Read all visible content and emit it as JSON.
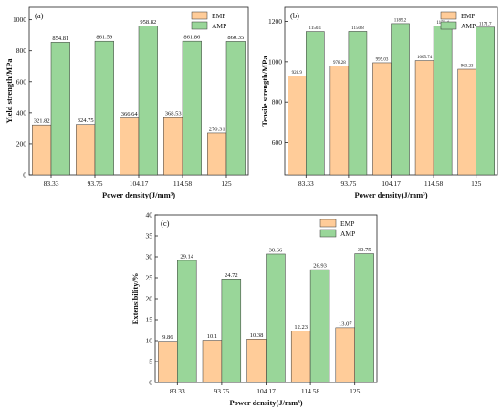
{
  "x_axis_title": "Power density(J/mm³)",
  "legend": [
    "EMP",
    "AMP"
  ],
  "colors": {
    "EMP": "#ffcc99",
    "AMP": "#99d699",
    "stroke": "#333333"
  },
  "chart_data": [
    {
      "type": "bar",
      "panel": "(a)",
      "categories": [
        "83.33",
        "93.75",
        "104.17",
        "114.58",
        "125"
      ],
      "series": [
        {
          "name": "EMP",
          "values": [
            321.82,
            324.75,
            366.64,
            368.53,
            270.31
          ]
        },
        {
          "name": "AMP",
          "values": [
            854.81,
            861.59,
            958.82,
            861.86,
            860.35
          ]
        }
      ],
      "data_labels": {
        "EMP": [
          "321.82",
          "324.75",
          "366.64",
          "368.53",
          "270.31"
        ],
        "AMP": [
          "854.81",
          "861.59",
          "958.82",
          "861.86",
          "860.35"
        ]
      },
      "xlabel": "Power density(J/mm³)",
      "ylabel": "Yield strength/MPa",
      "ylim": [
        0,
        1080
      ],
      "yticks": [
        0,
        200,
        400,
        600,
        800,
        1000
      ],
      "legend_position": "top-right"
    },
    {
      "type": "bar",
      "panel": "(b)",
      "categories": [
        "83.33",
        "93.75",
        "104.17",
        "114.58",
        "125"
      ],
      "series": [
        {
          "name": "EMP",
          "values": [
            928.9,
            978.28,
            995.03,
            1005.74,
            963.23
          ]
        },
        {
          "name": "AMP",
          "values": [
            1150.1,
            1150.8,
            1189.2,
            1176.4,
            1171.7
          ]
        }
      ],
      "data_labels": {
        "EMP": [
          "928.9",
          "978.28",
          "995.03",
          "1005.74",
          "963.23"
        ],
        "AMP": [
          "1150.1",
          "1150.8",
          "1189.2",
          "1176.4",
          "1171.7"
        ]
      },
      "xlabel": "Power density(J/mm³)",
      "ylabel": "Tensile strength/MPa",
      "ylim": [
        440,
        1270
      ],
      "yticks": [
        600,
        800,
        1000,
        1200
      ],
      "legend_position": "top-right"
    },
    {
      "type": "bar",
      "panel": "(c)",
      "categories": [
        "83.33",
        "93.75",
        "104.17",
        "114.58",
        "125"
      ],
      "series": [
        {
          "name": "EMP",
          "values": [
            9.86,
            10.1,
            10.38,
            12.23,
            13.07
          ]
        },
        {
          "name": "AMP",
          "values": [
            29.14,
            24.72,
            30.66,
            26.93,
            30.75
          ]
        }
      ],
      "data_labels": {
        "EMP": [
          "9.86",
          "10.1",
          "10.38",
          "12.23",
          "13.07"
        ],
        "AMP": [
          "29.14",
          "24.72",
          "30.66",
          "26.93",
          "30.75"
        ]
      },
      "xlabel": "Power density(J/mm³)",
      "ylabel": "Extensibility/%",
      "ylim": [
        0,
        40
      ],
      "yticks": [
        0,
        5,
        10,
        15,
        20,
        25,
        30,
        35,
        40
      ],
      "legend_position": "top-right"
    }
  ]
}
